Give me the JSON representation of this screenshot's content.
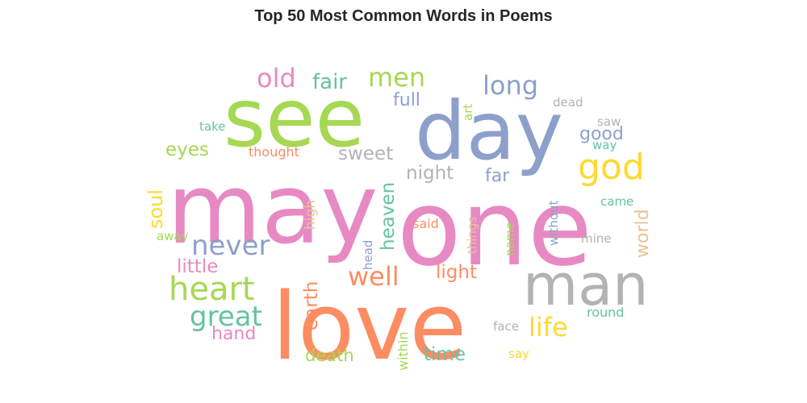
{
  "title": "Top 50 Most Common Words in Poems",
  "palette": {
    "green": "#a6d854",
    "blue": "#8da0cb",
    "pink": "#e78ac3",
    "orange": "#fc8d62",
    "gray": "#b3b3b3",
    "yellow": "#ffd92f",
    "teal": "#66c2a5",
    "tan": "#e5c494"
  },
  "words": [
    {
      "text": "may",
      "color": "pink"
    },
    {
      "text": "one",
      "color": "pink"
    },
    {
      "text": "love",
      "color": "orange"
    },
    {
      "text": "see",
      "color": "green"
    },
    {
      "text": "day",
      "color": "blue"
    },
    {
      "text": "man",
      "color": "gray"
    },
    {
      "text": "heart",
      "color": "green"
    },
    {
      "text": "never",
      "color": "blue"
    },
    {
      "text": "great",
      "color": "teal"
    },
    {
      "text": "god",
      "color": "yellow"
    },
    {
      "text": "well",
      "color": "orange"
    },
    {
      "text": "long",
      "color": "blue"
    },
    {
      "text": "old",
      "color": "pink"
    },
    {
      "text": "men",
      "color": "green"
    },
    {
      "text": "life",
      "color": "yellow"
    },
    {
      "text": "fair",
      "color": "teal"
    },
    {
      "text": "full",
      "color": "blue"
    },
    {
      "text": "sweet",
      "color": "gray"
    },
    {
      "text": "night",
      "color": "gray"
    },
    {
      "text": "far",
      "color": "blue"
    },
    {
      "text": "good",
      "color": "blue"
    },
    {
      "text": "eyes",
      "color": "green"
    },
    {
      "text": "soul",
      "color": "yellow"
    },
    {
      "text": "heaven",
      "color": "teal"
    },
    {
      "text": "little",
      "color": "pink"
    },
    {
      "text": "light",
      "color": "orange"
    },
    {
      "text": "earth",
      "color": "orange"
    },
    {
      "text": "world",
      "color": "tan"
    },
    {
      "text": "time",
      "color": "teal"
    },
    {
      "text": "hand",
      "color": "pink"
    },
    {
      "text": "death",
      "color": "green"
    },
    {
      "text": "high",
      "color": "tan"
    },
    {
      "text": "thought",
      "color": "orange"
    },
    {
      "text": "take",
      "color": "teal"
    },
    {
      "text": "dead",
      "color": "gray"
    },
    {
      "text": "art",
      "color": "green"
    },
    {
      "text": "saw",
      "color": "gray"
    },
    {
      "text": "way",
      "color": "teal"
    },
    {
      "text": "came",
      "color": "teal"
    },
    {
      "text": "without",
      "color": "blue"
    },
    {
      "text": "mine",
      "color": "gray"
    },
    {
      "text": "things",
      "color": "tan"
    },
    {
      "text": "head",
      "color": "blue"
    },
    {
      "text": "name",
      "color": "green"
    },
    {
      "text": "said",
      "color": "orange"
    },
    {
      "text": "away",
      "color": "green"
    },
    {
      "text": "round",
      "color": "teal"
    },
    {
      "text": "face",
      "color": "gray"
    },
    {
      "text": "within",
      "color": "green"
    },
    {
      "text": "say",
      "color": "yellow"
    }
  ]
}
